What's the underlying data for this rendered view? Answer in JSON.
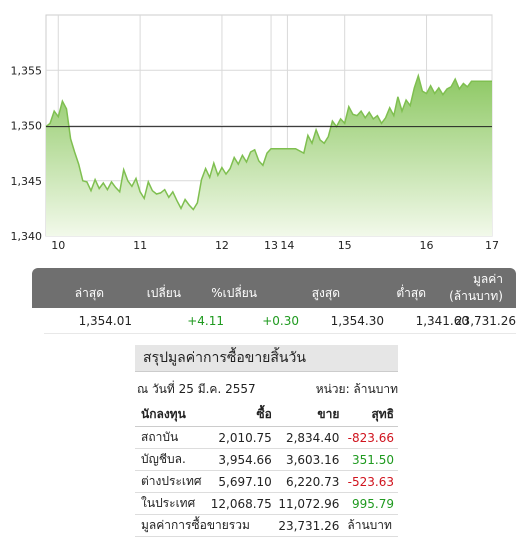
{
  "chart_data": {
    "type": "area",
    "x_ticks": [
      {
        "label": "10",
        "value": 0
      },
      {
        "label": "11",
        "value": 1
      },
      {
        "label": "12",
        "value": 2
      },
      {
        "label": "13",
        "value": 2.6
      },
      {
        "label": "14",
        "value": 2.8
      },
      {
        "label": "15",
        "value": 3.5
      },
      {
        "label": "16",
        "value": 4.5
      },
      {
        "label": "17",
        "value": 5.3
      }
    ],
    "y_ticks": [
      "1,340",
      "1,345",
      "1,350",
      "1,355"
    ],
    "ylim": [
      1340,
      1360
    ],
    "xlim": [
      -0.15,
      5.3
    ],
    "reference_value": 1349.9,
    "x": [
      -0.15,
      -0.1,
      -0.05,
      0.0,
      0.05,
      0.1,
      0.15,
      0.2,
      0.25,
      0.3,
      0.35,
      0.4,
      0.45,
      0.5,
      0.55,
      0.6,
      0.65,
      0.7,
      0.75,
      0.8,
      0.85,
      0.9,
      0.95,
      1.0,
      1.05,
      1.1,
      1.15,
      1.2,
      1.25,
      1.3,
      1.35,
      1.4,
      1.45,
      1.5,
      1.55,
      1.6,
      1.65,
      1.7,
      1.75,
      1.8,
      1.85,
      1.9,
      1.95,
      2.0,
      2.05,
      2.1,
      2.15,
      2.2,
      2.25,
      2.3,
      2.35,
      2.4,
      2.45,
      2.5,
      2.55,
      2.6,
      2.7,
      2.8,
      2.9,
      3.0,
      3.05,
      3.1,
      3.15,
      3.2,
      3.25,
      3.3,
      3.35,
      3.4,
      3.45,
      3.5,
      3.55,
      3.6,
      3.65,
      3.7,
      3.75,
      3.8,
      3.85,
      3.9,
      3.95,
      4.0,
      4.05,
      4.1,
      4.15,
      4.2,
      4.25,
      4.3,
      4.35,
      4.4,
      4.45,
      4.5,
      4.55,
      4.6,
      4.65,
      4.7,
      4.75,
      4.8,
      4.85,
      4.9,
      4.95,
      5.0,
      5.05,
      5.1,
      5.15,
      5.2,
      5.3
    ],
    "y": [
      1349.9,
      1350.2,
      1351.3,
      1350.8,
      1352.2,
      1351.5,
      1348.8,
      1347.6,
      1346.5,
      1345.0,
      1344.9,
      1344.1,
      1345.1,
      1344.3,
      1344.8,
      1344.2,
      1344.9,
      1344.4,
      1344.0,
      1346.0,
      1345.0,
      1344.5,
      1345.2,
      1344.0,
      1343.4,
      1344.9,
      1344.1,
      1343.8,
      1343.9,
      1344.2,
      1343.5,
      1344.0,
      1343.2,
      1342.5,
      1343.3,
      1342.8,
      1342.4,
      1343.0,
      1345.1,
      1346.1,
      1345.3,
      1346.6,
      1345.5,
      1346.2,
      1345.6,
      1346.1,
      1347.1,
      1346.5,
      1347.3,
      1346.7,
      1347.6,
      1347.8,
      1346.8,
      1346.4,
      1347.5,
      1347.9,
      1347.9,
      1347.9,
      1347.9,
      1347.5,
      1349.1,
      1348.4,
      1349.6,
      1348.7,
      1348.4,
      1349.0,
      1350.4,
      1349.9,
      1350.6,
      1350.2,
      1351.7,
      1351.0,
      1350.9,
      1351.3,
      1350.7,
      1351.2,
      1350.6,
      1350.9,
      1350.2,
      1350.7,
      1351.6,
      1350.9,
      1352.6,
      1351.3,
      1352.3,
      1351.8,
      1353.4,
      1354.5,
      1353.1,
      1352.9,
      1353.6,
      1352.9,
      1353.4,
      1352.8,
      1353.3,
      1353.5,
      1354.2,
      1353.3,
      1353.8,
      1353.5,
      1354.0,
      1354.0,
      1354.0,
      1354.0,
      1354.0
    ],
    "colors": {
      "line": "#7fbf50",
      "fill_top": "#8dc863",
      "fill_bottom": "#f2f9ea",
      "reference": "#222222",
      "grid": "#d9d9d9"
    }
  },
  "stats": {
    "headers": [
      "ล่าสุด",
      "เปลี่ยน",
      "%เปลี่ยน",
      "สูงสุด",
      "ต่ำสุด",
      "มูลค่า",
      "(ล้านบาท)"
    ],
    "values": {
      "last": "1,354.01",
      "change": "+4.11",
      "pct_change": "+0.30",
      "high": "1,354.30",
      "low": "1,341.60",
      "value": "23,731.26"
    }
  },
  "summary": {
    "title": "สรุปมูลค่าการซื้อขายสิ้นวัน",
    "date": "ณ วันที่ 25 มี.ค. 2557",
    "unit": "หน่วย: ล้านบาท",
    "columns": [
      "นักลงทุน",
      "ซื้อ",
      "ขาย",
      "สุทธิ"
    ],
    "rows": [
      {
        "investor": "สถาบัน",
        "buy": "2,010.75",
        "sell": "2,834.40",
        "net": "-823.66",
        "net_color": "red"
      },
      {
        "investor": "บัญชีบล.",
        "buy": "3,954.66",
        "sell": "3,603.16",
        "net": "351.50",
        "net_color": "green"
      },
      {
        "investor": "ต่างประเทศ",
        "buy": "5,697.10",
        "sell": "6,220.73",
        "net": "-523.63",
        "net_color": "red"
      },
      {
        "investor": "ในประเทศ",
        "buy": "12,068.75",
        "sell": "11,072.96",
        "net": "995.79",
        "net_color": "green"
      }
    ],
    "total_label": "มูลค่าการซื้อขายรวม",
    "total_value": "23,731.26",
    "total_unit": "ล้านบาท"
  }
}
